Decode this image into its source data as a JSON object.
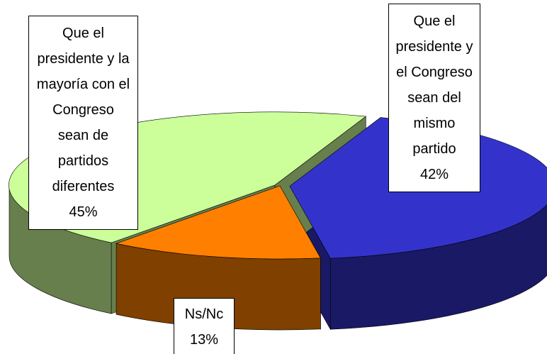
{
  "chart_data": {
    "type": "pie3d",
    "categories": [
      "Que el presidente y el Congreso sean del mismo partido",
      "Ns/Nc",
      "Que el presidente y la mayoría con el Congreso sean de partidos diferentes"
    ],
    "values": [
      42,
      13,
      45
    ],
    "value_labels": [
      "42%",
      "13%",
      "45%"
    ],
    "colors": [
      "#3333cc",
      "#ff8000",
      "#ccff99"
    ]
  }
}
